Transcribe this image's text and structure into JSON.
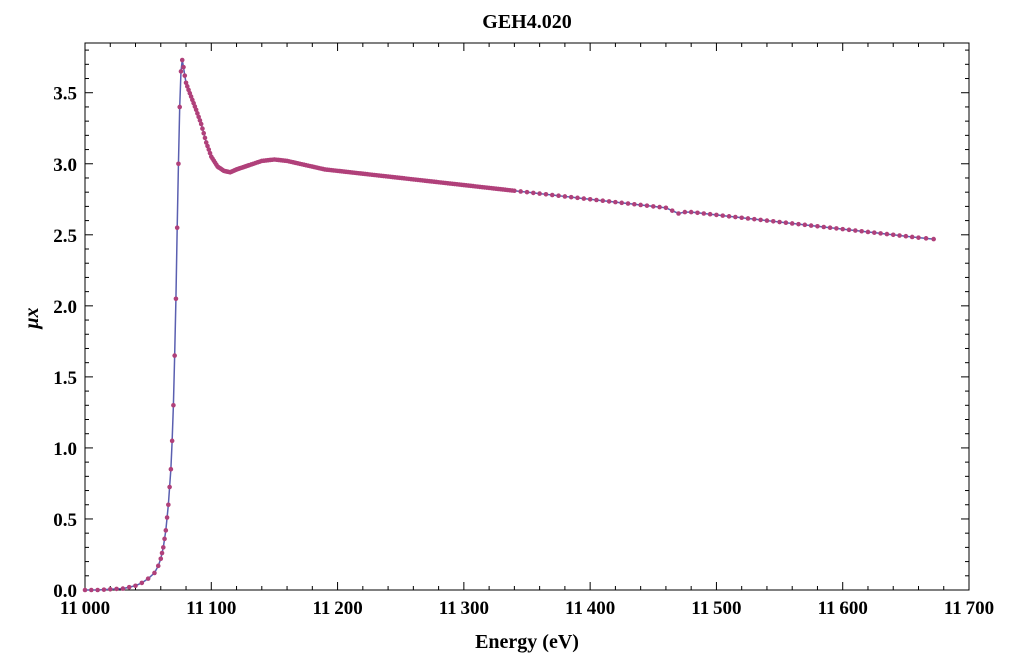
{
  "chart_data": {
    "type": "line",
    "title": "GEH4.020",
    "xlabel": "Energy (eV)",
    "ylabel": "μx",
    "xlim": [
      11000,
      11700
    ],
    "ylim": [
      0,
      3.85
    ],
    "xticks": [
      11000,
      11100,
      11200,
      11300,
      11400,
      11500,
      11600,
      11700
    ],
    "xtick_labels": [
      "11 000",
      "11 100",
      "11 200",
      "11 300",
      "11 400",
      "11 500",
      "11 600",
      "11 700"
    ],
    "yticks": [
      0,
      0.5,
      1.0,
      1.5,
      2.0,
      2.5,
      3.0,
      3.5
    ],
    "ytick_labels": [
      "0.0",
      "0.5",
      "1.0",
      "1.5",
      "2.0",
      "2.5",
      "3.0",
      "3.5"
    ],
    "grid": false,
    "line_color": "#5a5fb0",
    "marker_color": "#b0407a",
    "series": [
      {
        "x": [
          11000,
          11010,
          11020,
          11030,
          11040,
          11045,
          11050,
          11055,
          11058,
          11060,
          11062,
          11064,
          11066,
          11068,
          11069,
          11070,
          11071,
          11072,
          11073,
          11074,
          11075,
          11076,
          11077,
          11078,
          11079,
          11080,
          11082,
          11085,
          11088,
          11092,
          11096,
          11100,
          11105,
          11110,
          11115,
          11120,
          11130,
          11140,
          11150,
          11160,
          11170,
          11180,
          11190,
          11200,
          11210,
          11220,
          11240,
          11260,
          11280,
          11300,
          11320,
          11340,
          11360,
          11380,
          11400,
          11420,
          11440,
          11460,
          11465,
          11470,
          11475,
          11480,
          11500,
          11520,
          11540,
          11560,
          11580,
          11600,
          11620,
          11640,
          11660,
          11672
        ],
        "y": [
          0.0,
          0.0,
          0.005,
          0.01,
          0.03,
          0.05,
          0.08,
          0.12,
          0.17,
          0.22,
          0.3,
          0.42,
          0.6,
          0.85,
          1.05,
          1.3,
          1.65,
          2.05,
          2.55,
          3.0,
          3.4,
          3.65,
          3.73,
          3.68,
          3.62,
          3.57,
          3.52,
          3.45,
          3.38,
          3.28,
          3.15,
          3.05,
          2.98,
          2.95,
          2.94,
          2.96,
          2.99,
          3.02,
          3.03,
          3.02,
          3.0,
          2.98,
          2.96,
          2.95,
          2.94,
          2.93,
          2.91,
          2.89,
          2.87,
          2.85,
          2.83,
          2.81,
          2.79,
          2.77,
          2.75,
          2.73,
          2.71,
          2.69,
          2.67,
          2.65,
          2.66,
          2.66,
          2.64,
          2.62,
          2.6,
          2.58,
          2.56,
          2.54,
          2.52,
          2.5,
          2.48,
          2.47
        ]
      }
    ]
  }
}
